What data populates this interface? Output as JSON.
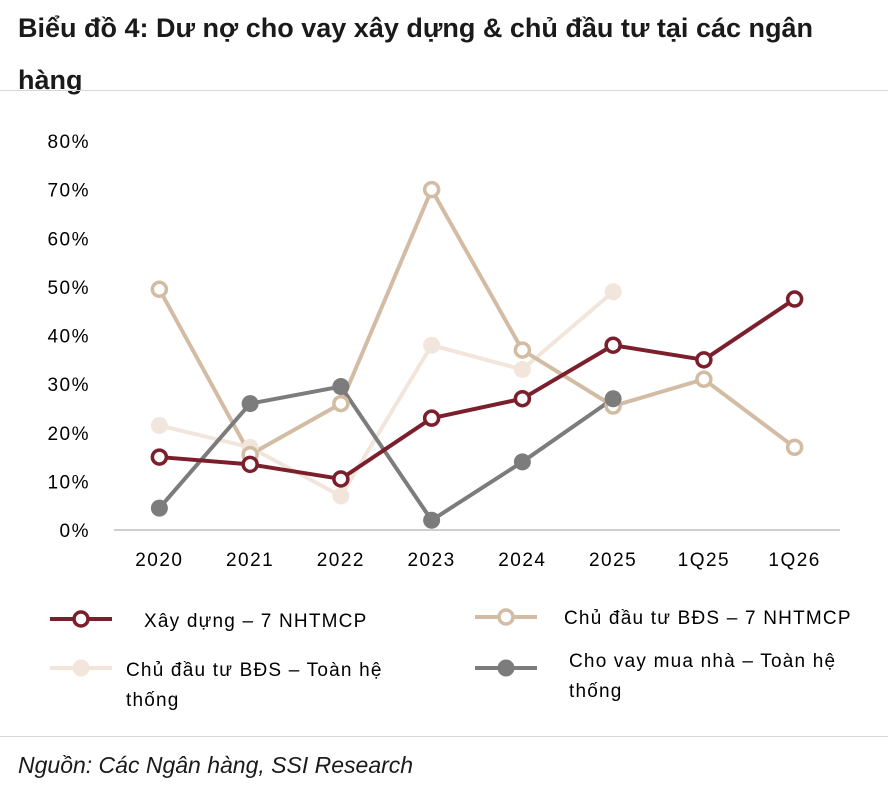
{
  "title": "Biểu đồ 4: Dư nợ cho vay xây dựng & chủ đầu tư tại các ngân hàng",
  "source": "Nguồn: Các Ngân hàng, SSI Research",
  "chart_data": {
    "type": "line",
    "categories": [
      "2020",
      "2021",
      "2022",
      "2023",
      "2024",
      "2025",
      "1Q25",
      "1Q26"
    ],
    "y_ticks": [
      "0%",
      "10%",
      "20%",
      "30%",
      "40%",
      "50%",
      "60%",
      "70%",
      "80%"
    ],
    "ylim": [
      0,
      80
    ],
    "grid": false,
    "legend_position": "bottom",
    "series": [
      {
        "name": "Xây dựng – 7 NHTMCP",
        "legend_lines": [
          "Xây dựng – 7 NHTMCP"
        ],
        "color": "#7a1f2b",
        "marker": "hollow",
        "values": [
          15,
          13.5,
          10.5,
          23,
          27,
          38,
          35,
          47.5
        ]
      },
      {
        "name": "Chủ đầu tư BĐS – 7 NHTMCP",
        "legend_lines": [
          "Chủ đầu tư BĐS – 7 NHTMCP"
        ],
        "color": "#d3bca4",
        "marker": "hollow",
        "values": [
          49.5,
          15.5,
          26,
          70,
          37,
          25.5,
          31,
          17
        ]
      },
      {
        "name": "Chủ đầu tư BĐS – Toàn hệ thống",
        "legend_lines": [
          "Chủ đầu tư BĐS – Toàn hệ",
          "thống"
        ],
        "color": "#f2e5dc",
        "marker": "filled",
        "values": [
          21.5,
          17,
          7,
          38,
          33,
          49,
          null,
          null
        ]
      },
      {
        "name": "Cho vay mua nhà – Toàn hệ thống",
        "legend_lines": [
          "Cho vay mua nhà – Toàn hệ",
          "thống"
        ],
        "color": "#7c7c7c",
        "marker": "filled",
        "values": [
          4.5,
          26,
          29.5,
          2,
          14,
          27,
          null,
          null
        ]
      }
    ]
  }
}
